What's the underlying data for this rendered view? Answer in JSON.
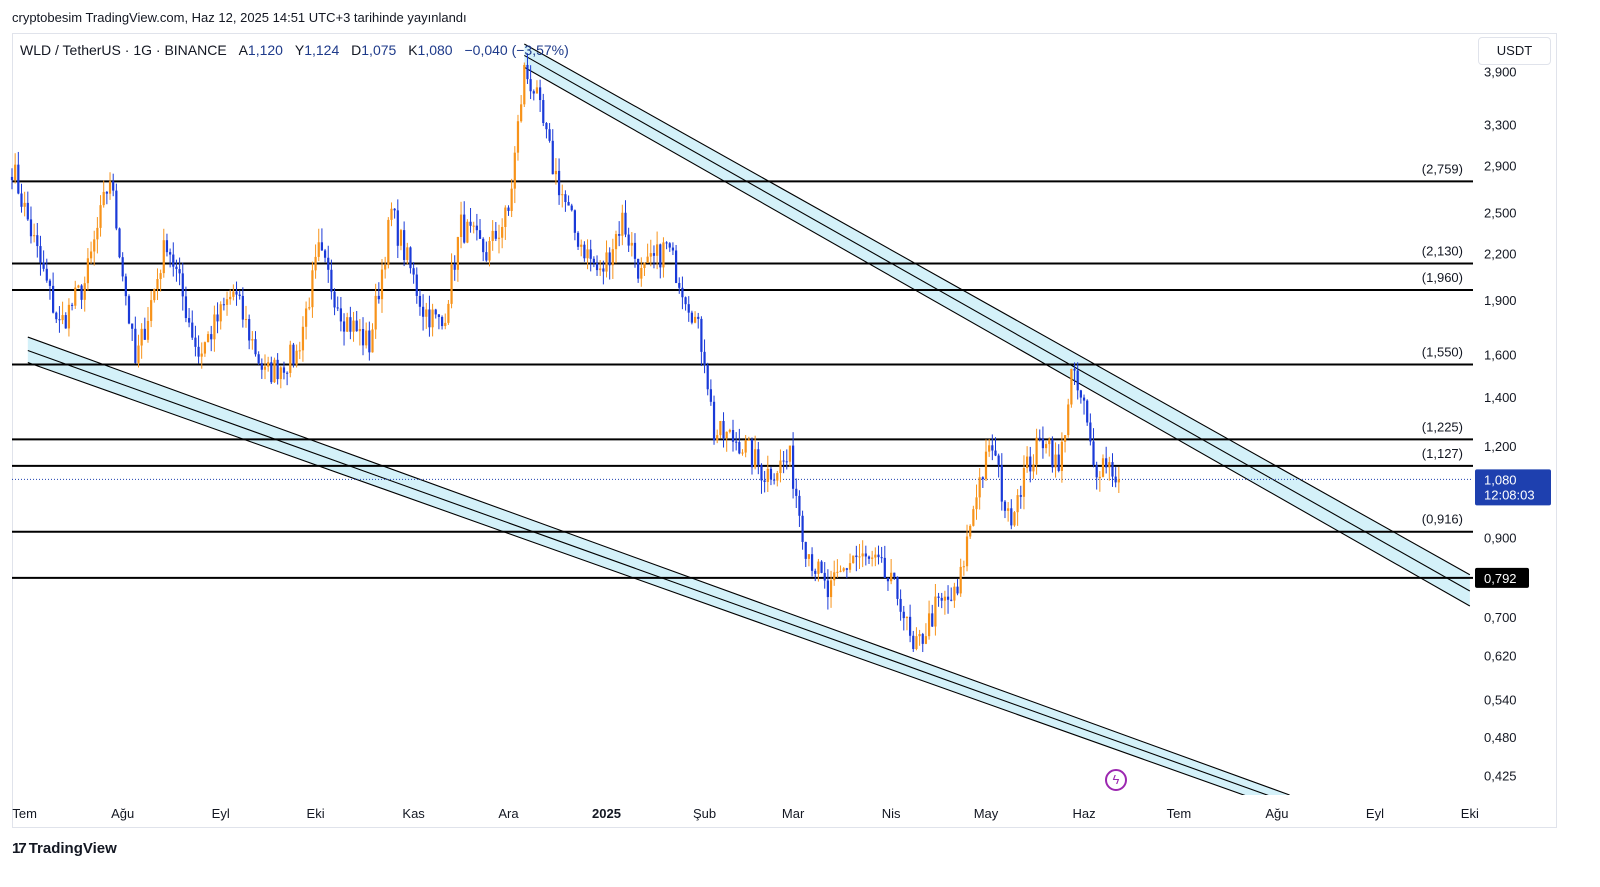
{
  "header": {
    "published_text": "cryptobesim TradingView.com, Haz 12, 2025 14:51 UTC+3 tarihinde yayınlandı"
  },
  "legend": {
    "symbol": "WLD / TetherUS · 1G · BINANCE",
    "open_label": "A",
    "open_value": "1,120",
    "high_label": "Y",
    "high_value": "1,124",
    "low_label": "D",
    "low_value": "1,075",
    "close_label": "K",
    "close_value": "1,080",
    "change": "−0,040 (−3,57%)"
  },
  "currency_button": "USDT",
  "price_tag": {
    "price": "1,080",
    "countdown": "12:08:03"
  },
  "support_tag": "0,792",
  "footer": {
    "brand": "TradingView",
    "brand_mark": "17"
  },
  "colors": {
    "up": "#f7931a",
    "down": "#1a3ad8",
    "channel_fill": "#d4f1f9",
    "line": "#000000",
    "tag_bg": "#1e40af"
  },
  "icons": {
    "alert": "lightning-bolt-icon"
  },
  "chart_data": {
    "type": "candlestick",
    "title": "WLD / TetherUS · 1G · BINANCE",
    "y_scale": "log",
    "y_range": [
      0.4,
      4.4
    ],
    "x_range": [
      "2024-06-27",
      "2025-10-02"
    ],
    "y_ticks": [
      "3,900",
      "3,300",
      "2,900",
      "2,500",
      "2,200",
      "1,900",
      "1,600",
      "1,400",
      "1,200",
      "0,900",
      "0,700",
      "0,620",
      "0,540",
      "0,480",
      "0,425"
    ],
    "y_tick_values": [
      3.9,
      3.3,
      2.9,
      2.5,
      2.2,
      1.9,
      1.6,
      1.4,
      1.2,
      0.9,
      0.7,
      0.62,
      0.54,
      0.48,
      0.425
    ],
    "x_ticks": [
      {
        "label": "Tem",
        "date": "2024-07-01"
      },
      {
        "label": "Ağu",
        "date": "2024-08-01"
      },
      {
        "label": "Eyl",
        "date": "2024-09-01"
      },
      {
        "label": "Eki",
        "date": "2024-10-01"
      },
      {
        "label": "Kas",
        "date": "2024-11-01"
      },
      {
        "label": "Ara",
        "date": "2024-12-01"
      },
      {
        "label": "2025",
        "date": "2025-01-01"
      },
      {
        "label": "Şub",
        "date": "2025-02-01"
      },
      {
        "label": "Mar",
        "date": "2025-03-01"
      },
      {
        "label": "Nis",
        "date": "2025-04-01"
      },
      {
        "label": "May",
        "date": "2025-05-01"
      },
      {
        "label": "Haz",
        "date": "2025-06-01"
      },
      {
        "label": "Tem",
        "date": "2025-07-01"
      },
      {
        "label": "Ağu",
        "date": "2025-08-01"
      },
      {
        "label": "Eyl",
        "date": "2025-09-01"
      },
      {
        "label": "Eki",
        "date": "2025-10-01"
      }
    ],
    "levels": [
      {
        "value": 2.759,
        "label": "(2,759)"
      },
      {
        "value": 2.13,
        "label": "(2,130)"
      },
      {
        "value": 1.96,
        "label": "(1,960)"
      },
      {
        "value": 1.55,
        "label": "(1,550)"
      },
      {
        "value": 1.225,
        "label": "(1,225)"
      },
      {
        "value": 1.127,
        "label": "(1,127)"
      },
      {
        "value": 0.916,
        "label": "(0,916)"
      },
      {
        "value": 0.792,
        "label": ""
      }
    ],
    "last_price": 1.08,
    "channels": [
      {
        "name": "upper-descending-channel",
        "start": {
          "date": "2024-12-06",
          "top": 4.25,
          "mid": 4.1,
          "bottom": 3.95
        },
        "end": {
          "date": "2025-10-01",
          "top": 0.8,
          "mid": 0.76,
          "bottom": 0.725
        }
      },
      {
        "name": "lower-descending-channel",
        "start": {
          "date": "2024-07-02",
          "top": 1.69,
          "mid": 1.62,
          "bottom": 1.56
        },
        "end": {
          "date": "2025-08-05",
          "top": 0.4,
          "mid": 0.39,
          "bottom": 0.38
        }
      }
    ],
    "anchor_closes": [
      [
        "2024-06-27",
        2.9
      ],
      [
        "2024-07-05",
        2.2
      ],
      [
        "2024-07-12",
        1.75
      ],
      [
        "2024-07-20",
        2.0
      ],
      [
        "2024-07-28",
        2.8
      ],
      [
        "2024-08-05",
        1.55
      ],
      [
        "2024-08-15",
        2.3
      ],
      [
        "2024-08-25",
        1.6
      ],
      [
        "2024-09-05",
        1.95
      ],
      [
        "2024-09-15",
        1.5
      ],
      [
        "2024-09-25",
        1.6
      ],
      [
        "2024-10-02",
        2.2
      ],
      [
        "2024-10-10",
        1.8
      ],
      [
        "2024-10-18",
        1.65
      ],
      [
        "2024-10-25",
        2.5
      ],
      [
        "2024-11-04",
        1.85
      ],
      [
        "2024-11-10",
        1.75
      ],
      [
        "2024-11-16",
        2.4
      ],
      [
        "2024-11-24",
        2.2
      ],
      [
        "2024-12-01",
        2.5
      ],
      [
        "2024-12-06",
        3.9
      ],
      [
        "2024-12-09",
        3.7
      ],
      [
        "2024-12-15",
        2.9
      ],
      [
        "2024-12-22",
        2.35
      ],
      [
        "2024-12-30",
        2.05
      ],
      [
        "2025-01-06",
        2.45
      ],
      [
        "2025-01-12",
        2.05
      ],
      [
        "2025-01-20",
        2.25
      ],
      [
        "2025-01-28",
        1.85
      ],
      [
        "2025-02-01",
        1.6
      ],
      [
        "2025-02-04",
        1.25
      ],
      [
        "2025-02-12",
        1.22
      ],
      [
        "2025-02-20",
        1.1
      ],
      [
        "2025-02-28",
        1.15
      ],
      [
        "2025-03-05",
        0.88
      ],
      [
        "2025-03-12",
        0.75
      ],
      [
        "2025-03-20",
        0.85
      ],
      [
        "2025-03-28",
        0.82
      ],
      [
        "2025-04-04",
        0.74
      ],
      [
        "2025-04-08",
        0.62
      ],
      [
        "2025-04-15",
        0.72
      ],
      [
        "2025-04-22",
        0.75
      ],
      [
        "2025-04-28",
        1.05
      ],
      [
        "2025-05-03",
        1.2
      ],
      [
        "2025-05-08",
        0.95
      ],
      [
        "2025-05-13",
        1.1
      ],
      [
        "2025-05-20",
        1.25
      ],
      [
        "2025-05-24",
        1.1
      ],
      [
        "2025-05-28",
        1.5
      ],
      [
        "2025-06-01",
        1.35
      ],
      [
        "2025-06-04",
        1.12
      ],
      [
        "2025-06-08",
        1.15
      ],
      [
        "2025-06-12",
        1.08
      ]
    ]
  }
}
